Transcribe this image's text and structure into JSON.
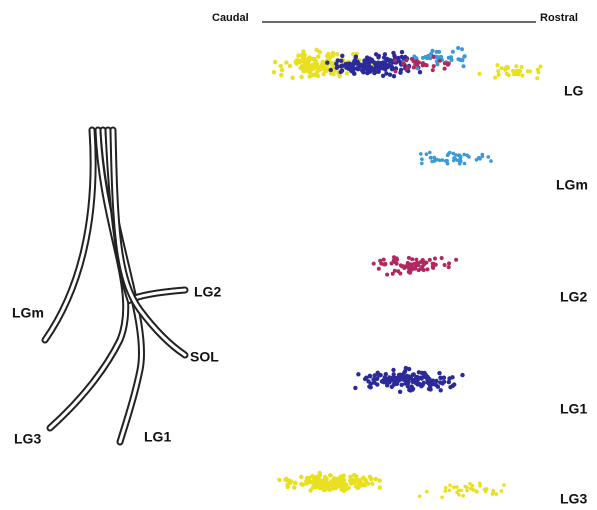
{
  "axis": {
    "left": "Caudal",
    "right": "Rostral"
  },
  "rows": [
    {
      "label": "LG"
    },
    {
      "label": "LGm"
    },
    {
      "label": "LG2"
    },
    {
      "label": "LG1"
    },
    {
      "label": "LG3"
    }
  ],
  "nerves": [
    {
      "label": "LGm"
    },
    {
      "label": "LG2"
    },
    {
      "label": "SOL"
    },
    {
      "label": "LG3"
    },
    {
      "label": "LG1"
    }
  ]
}
